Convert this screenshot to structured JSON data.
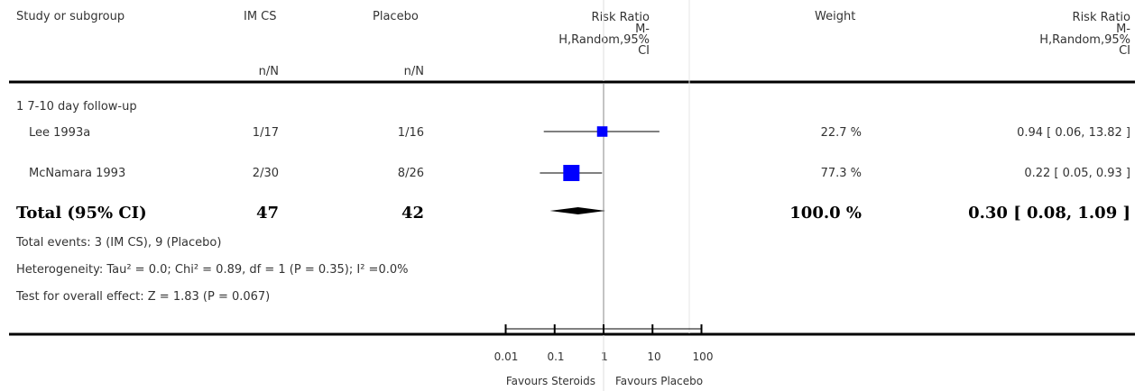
{
  "header": {
    "study": "Study or subgroup",
    "ex": "IM CS",
    "ctrl": "Placebo",
    "rr_plot": [
      "Risk Ratio",
      "M-",
      "H,Random,95%",
      "CI"
    ],
    "weight": "Weight",
    "rr_text": [
      "Risk Ratio",
      "M-",
      "H,Random,95%",
      "CI"
    ],
    "nN_ex": "n/N",
    "nN_ctrl": "n/N"
  },
  "subgroup": "1 7-10 day follow-up",
  "studies": [
    {
      "name": "Lee 1993a",
      "ex": "1/17",
      "ctrl": "1/16",
      "weight": "22.7 %",
      "ci_text": "0.94 [ 0.06, 13.82 ]"
    },
    {
      "name": "McNamara 1993",
      "ex": "2/30",
      "ctrl": "8/26",
      "weight": "77.3 %",
      "ci_text": "0.22 [ 0.05, 0.93 ]"
    }
  ],
  "total": {
    "label": "Total (95% CI)",
    "ex": "47",
    "ctrl": "42",
    "weight": "100.0 %",
    "ci_text": "0.30 [ 0.08, 1.09 ]"
  },
  "footer": {
    "events": "Total events: 3 (IM CS), 9 (Placebo)",
    "heterogeneity": "Heterogeneity: Tau² = 0.0; Chi² = 0.89, df = 1 (P = 0.35); I² =0.0%",
    "overall": "Test for overall effect: Z = 1.83 (P = 0.067)"
  },
  "axis": {
    "ticks": [
      "0.01",
      "0.1",
      "1",
      "10",
      "100"
    ],
    "favours_left": "Favours Steroids",
    "favours_right": "Favours Placebo"
  },
  "chart_data": {
    "type": "forest",
    "scale": "log",
    "xlim": [
      0.01,
      100
    ],
    "tick_values": [
      0.01,
      0.1,
      1,
      10,
      100
    ],
    "studies": [
      {
        "name": "Lee 1993a",
        "rr": 0.94,
        "lo": 0.06,
        "hi": 13.82,
        "weight": 22.7
      },
      {
        "name": "McNamara 1993",
        "rr": 0.22,
        "lo": 0.05,
        "hi": 0.93,
        "weight": 77.3
      }
    ],
    "pooled": {
      "rr": 0.3,
      "lo": 0.08,
      "hi": 1.09
    },
    "colors": {
      "marker": "#0000ff",
      "line": "#000000",
      "axis_grey": "#888888"
    }
  }
}
